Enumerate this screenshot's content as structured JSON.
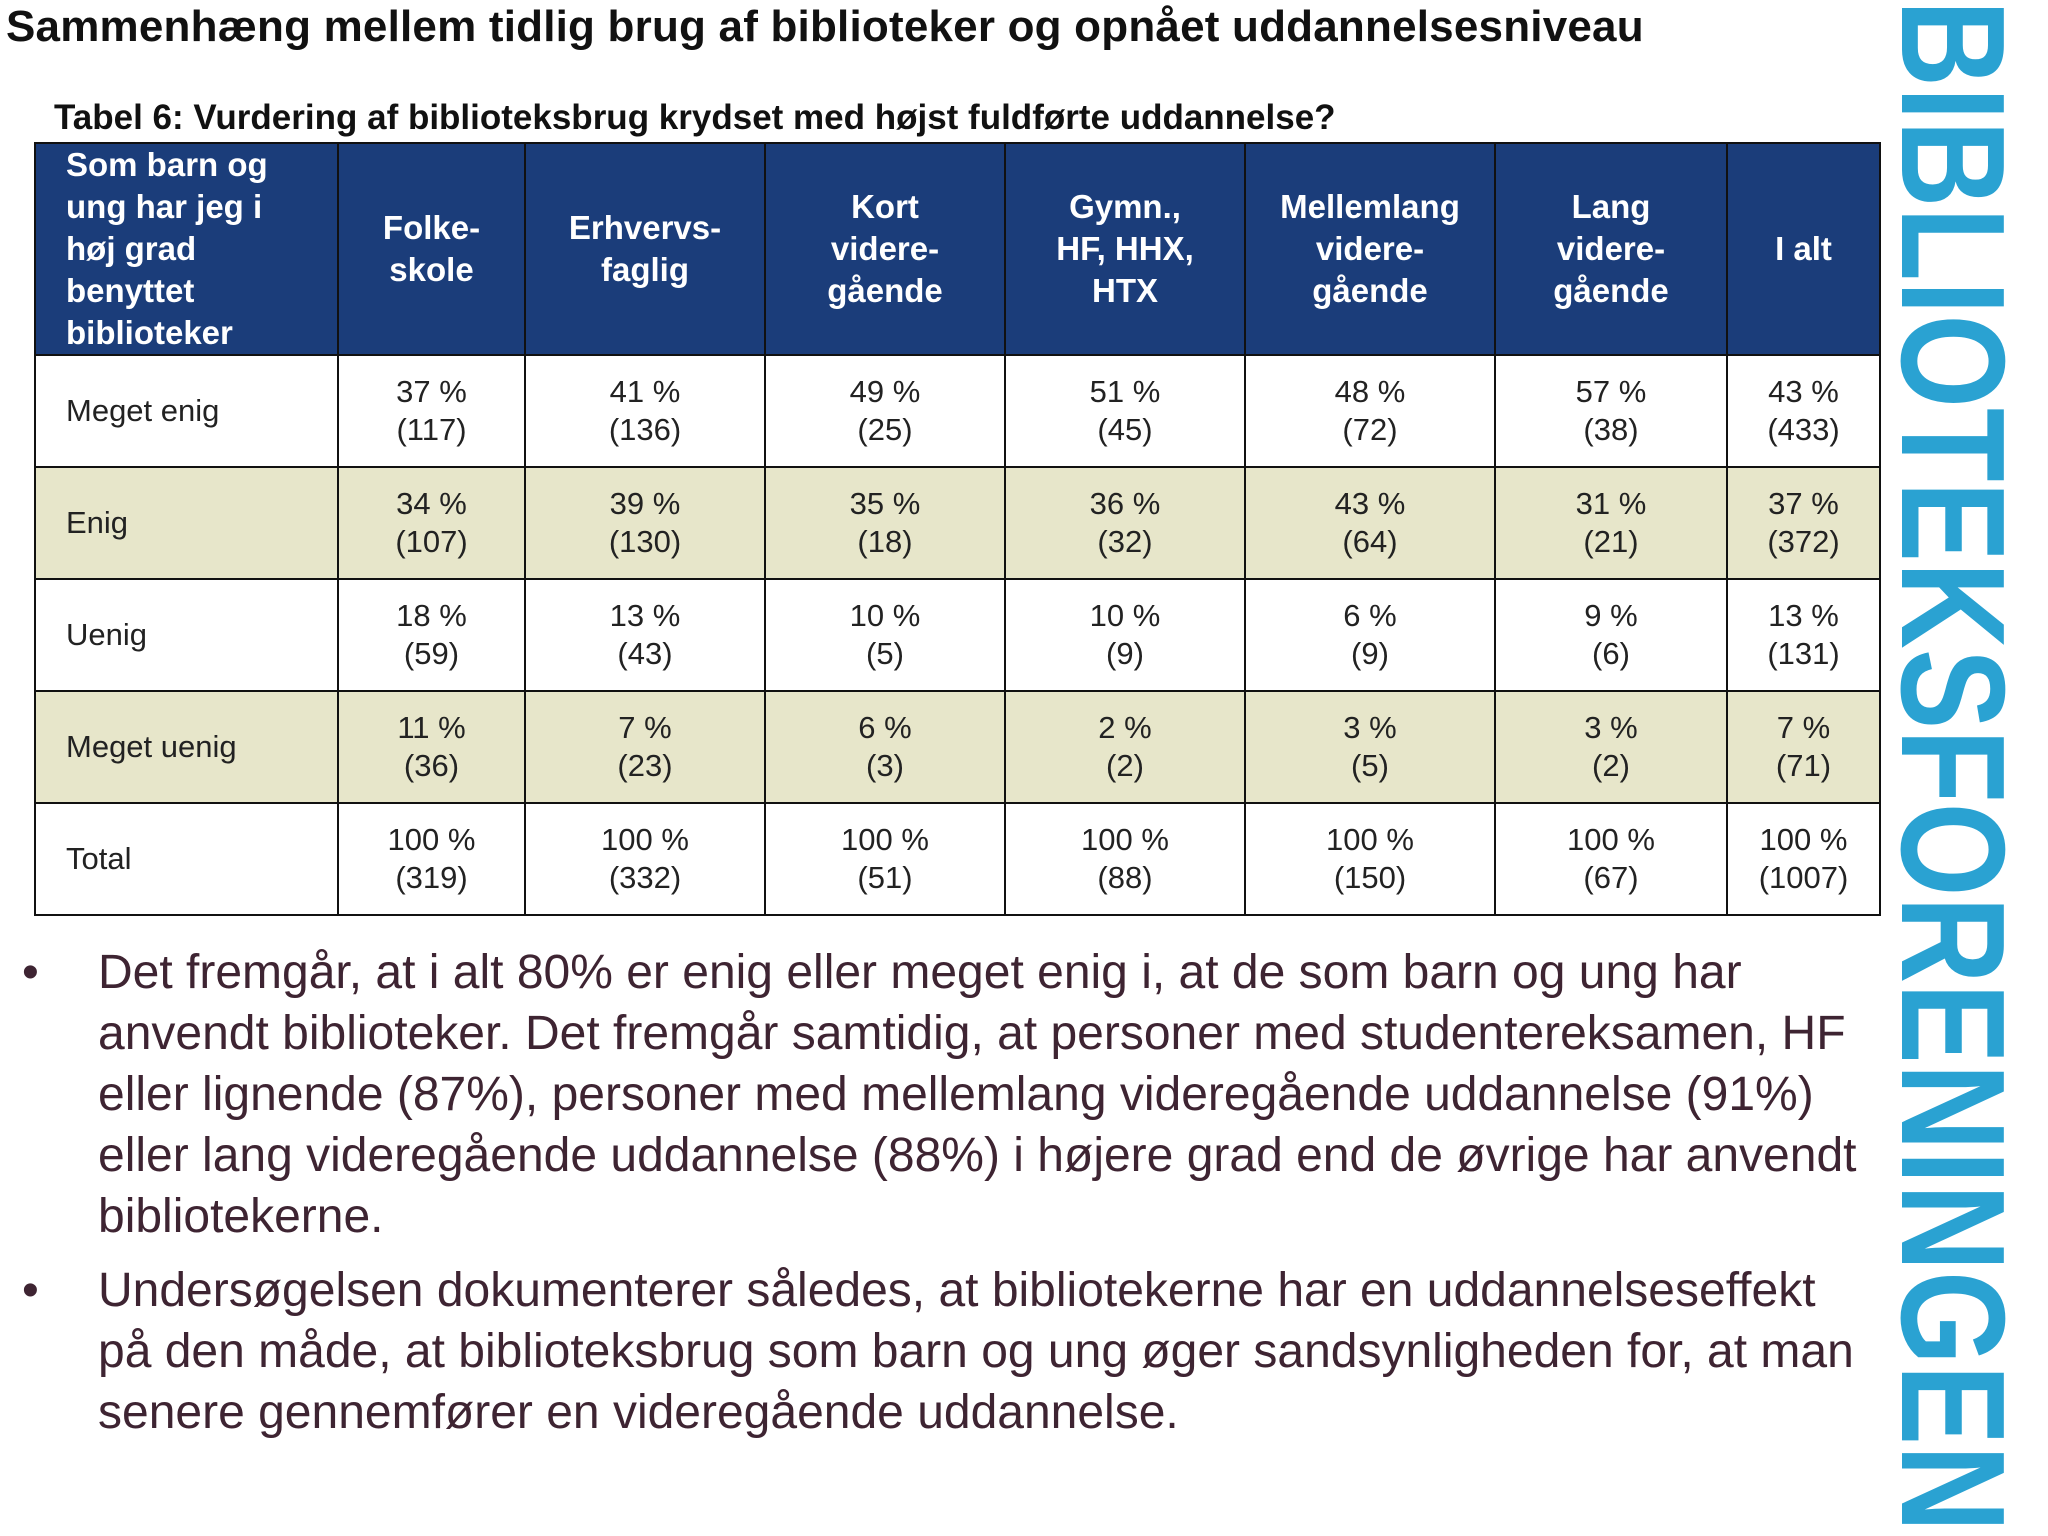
{
  "slide": {
    "title": "Sammenhæng mellem tidlig brug af biblioteker og opnået uddannelsesniveau",
    "table_caption": "Tabel 6: Vurdering af biblioteksbrug krydset med højst fuldførte uddannelse?"
  },
  "table": {
    "corner_header": [
      "Som barn og",
      "ung har jeg i",
      "høj grad",
      "benyttet",
      "biblioteker"
    ],
    "columns": [
      [
        "Folke-",
        "skole"
      ],
      [
        "Erhvervs-",
        "faglig"
      ],
      [
        "Kort",
        "videre-",
        "gående"
      ],
      [
        "Gymn.,",
        "HF, HHX,",
        "HTX"
      ],
      [
        "Mellemlang",
        "videre-",
        "gående"
      ],
      [
        "Lang",
        "videre-",
        "gående"
      ],
      [
        "I alt"
      ]
    ],
    "rows": [
      {
        "label": "Meget enig",
        "cells": [
          [
            "37 %",
            "(117)"
          ],
          [
            "41 %",
            "(136)"
          ],
          [
            "49 %",
            "(25)"
          ],
          [
            "51 %",
            "(45)"
          ],
          [
            "48 %",
            "(72)"
          ],
          [
            "57 %",
            "(38)"
          ],
          [
            "43 %",
            "(433)"
          ]
        ]
      },
      {
        "label": "Enig",
        "cells": [
          [
            "34 %",
            "(107)"
          ],
          [
            "39 %",
            "(130)"
          ],
          [
            "35 %",
            "(18)"
          ],
          [
            "36 %",
            "(32)"
          ],
          [
            "43 %",
            "(64)"
          ],
          [
            "31 %",
            "(21)"
          ],
          [
            "37 %",
            "(372)"
          ]
        ]
      },
      {
        "label": "Uenig",
        "cells": [
          [
            "18 %",
            "(59)"
          ],
          [
            "13 %",
            "(43)"
          ],
          [
            "10 %",
            "(5)"
          ],
          [
            "10 %",
            "(9)"
          ],
          [
            "6 %",
            "(9)"
          ],
          [
            "9 %",
            "(6)"
          ],
          [
            "13 %",
            "(131)"
          ]
        ]
      },
      {
        "label": "Meget uenig",
        "cells": [
          [
            "11 %",
            "(36)"
          ],
          [
            "7 %",
            "(23)"
          ],
          [
            "6 %",
            "(3)"
          ],
          [
            "2 %",
            "(2)"
          ],
          [
            "3 %",
            "(5)"
          ],
          [
            "3 %",
            "(2)"
          ],
          [
            "7 %",
            "(71)"
          ]
        ]
      },
      {
        "label": "Total",
        "cells": [
          [
            "100 %",
            "(319)"
          ],
          [
            "100 %",
            "(332)"
          ],
          [
            "100 %",
            "(51)"
          ],
          [
            "100 %",
            "(88)"
          ],
          [
            "100 %",
            "(150)"
          ],
          [
            "100 %",
            "(67)"
          ],
          [
            "100 %",
            "(1007)"
          ]
        ]
      }
    ]
  },
  "bullets": [
    {
      "marker": "•",
      "text": "Det fremgår, at i alt 80% er enig eller meget enig i, at de som barn og ung har anvendt biblioteker. Det fremgår samtidig, at personer med studentereksamen, HF eller lignende (87%), personer med mellemlang videregående uddannelse (91%) eller lang videregående uddannelse (88%) i højere grad end de øvrige har anvendt bibliotekerne."
    },
    {
      "marker": "•",
      "text": "Undersøgelsen dokumenterer således, at bibliotekerne har en uddannelseseffekt på den måde, at biblioteksbrug som barn og ung øger sandsynligheden for, at man senere gennemfører en videregående uddannelse."
    }
  ],
  "logo": {
    "text": "BIBLIOTEKSFORENINGEN",
    "color": "#2aa2d2"
  },
  "colors": {
    "header_bg": "#1b3d7a",
    "shaded_row": "#e7e6ca",
    "bullet_text": "#3e2432"
  }
}
